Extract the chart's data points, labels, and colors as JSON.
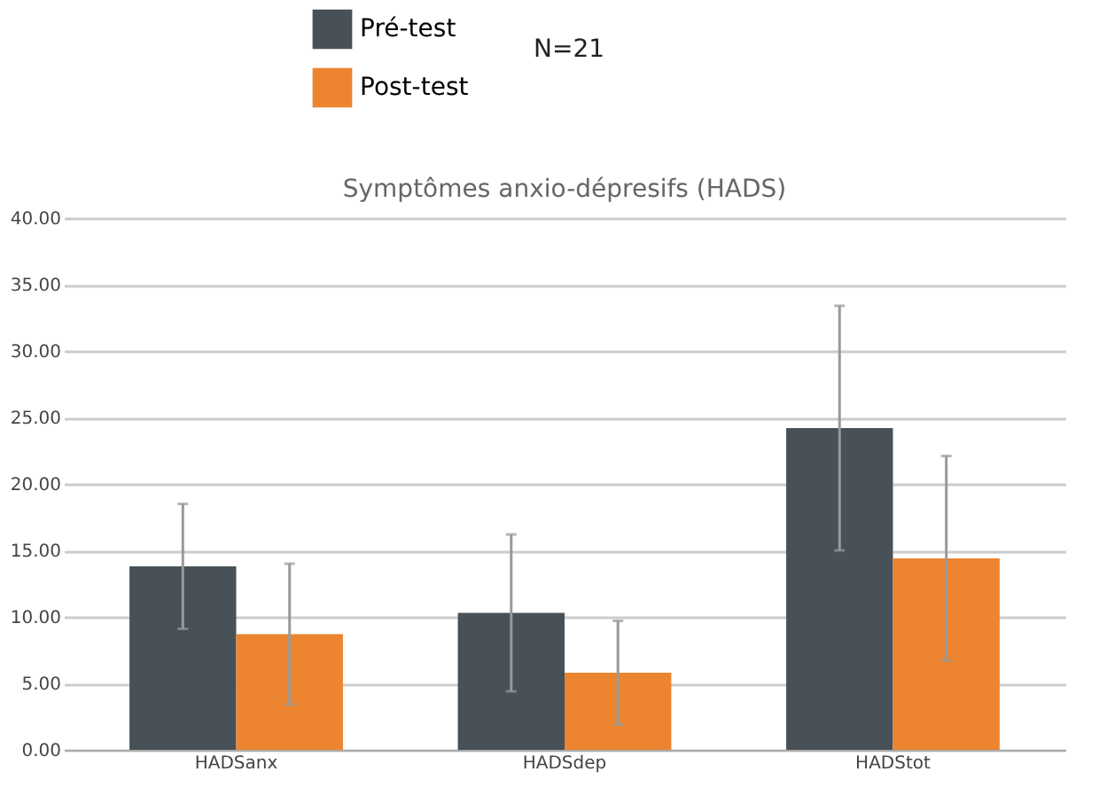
{
  "chart_data": {
    "type": "bar",
    "title": "Symptômes anxio-dépresifs (HADS)",
    "categories": [
      "HADSanx",
      "HADSdep",
      "HADStot"
    ],
    "series": [
      {
        "name": "Pré-test",
        "color": "#475157",
        "values": [
          13.8,
          10.3,
          24.2
        ],
        "errors": [
          4.7,
          5.9,
          9.2
        ]
      },
      {
        "name": "Post-test",
        "color": "#ec8430",
        "values": [
          8.7,
          5.8,
          14.4
        ],
        "errors": [
          5.3,
          3.9,
          7.7
        ]
      }
    ],
    "annotations": [
      "N=21"
    ],
    "ylim": [
      0,
      40
    ],
    "yticks": [
      {
        "value": 0,
        "label": "0.00"
      },
      {
        "value": 5,
        "label": "5.00"
      },
      {
        "value": 10,
        "label": "10.00"
      },
      {
        "value": 15,
        "label": "15.00"
      },
      {
        "value": 20,
        "label": "20.00"
      },
      {
        "value": 25,
        "label": "25.00"
      },
      {
        "value": 30,
        "label": "30.00"
      },
      {
        "value": 35,
        "label": "35.00"
      },
      {
        "value": 40,
        "label": "40.00"
      }
    ],
    "grid": "y",
    "legend": "top"
  }
}
